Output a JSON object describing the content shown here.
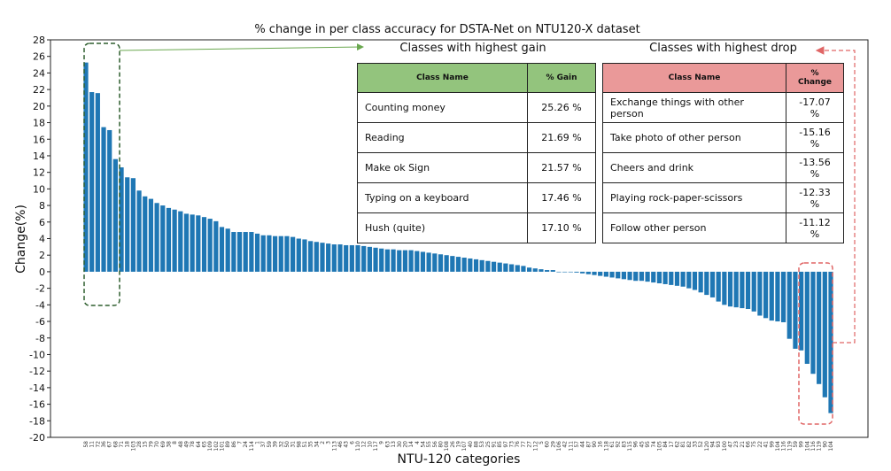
{
  "chart_data": {
    "type": "bar",
    "title": "% change in per class accuracy for DSTA-Net on NTU120-X dataset",
    "xlabel": "NTU-120 categories",
    "ylabel": "Change(%)",
    "ylim": [
      -20,
      28
    ],
    "yticks": [
      -20,
      -18,
      -16,
      -14,
      -12,
      -10,
      -8,
      -6,
      -4,
      -2,
      0,
      2,
      4,
      6,
      8,
      10,
      12,
      14,
      16,
      18,
      20,
      22,
      24,
      26,
      28
    ],
    "bar_color": "#1f77b4",
    "values": [
      25.26,
      21.69,
      21.57,
      17.46,
      17.1,
      13.6,
      12.6,
      11.4,
      11.3,
      9.8,
      9.1,
      8.8,
      8.3,
      8.0,
      7.7,
      7.5,
      7.3,
      7.0,
      6.9,
      6.8,
      6.6,
      6.4,
      6.1,
      5.4,
      5.2,
      4.8,
      4.8,
      4.8,
      4.8,
      4.6,
      4.4,
      4.4,
      4.3,
      4.3,
      4.3,
      4.2,
      4.0,
      3.9,
      3.7,
      3.6,
      3.5,
      3.4,
      3.3,
      3.3,
      3.2,
      3.2,
      3.2,
      3.1,
      3.0,
      2.9,
      2.8,
      2.7,
      2.7,
      2.6,
      2.6,
      2.6,
      2.5,
      2.4,
      2.3,
      2.2,
      2.1,
      2.0,
      1.9,
      1.8,
      1.7,
      1.6,
      1.5,
      1.4,
      1.3,
      1.2,
      1.1,
      1.0,
      0.9,
      0.8,
      0.7,
      0.5,
      0.4,
      0.3,
      0.2,
      0.2,
      0.0,
      0.0,
      0.0,
      -0.1,
      -0.2,
      -0.3,
      -0.4,
      -0.5,
      -0.6,
      -0.7,
      -0.8,
      -0.9,
      -1.0,
      -1.1,
      -1.1,
      -1.2,
      -1.3,
      -1.4,
      -1.5,
      -1.6,
      -1.7,
      -1.8,
      -2.0,
      -2.2,
      -2.5,
      -2.8,
      -3.1,
      -3.6,
      -4.0,
      -4.2,
      -4.3,
      -4.4,
      -4.5,
      -4.8,
      -5.3,
      -5.6,
      -5.9,
      -6.0,
      -6.1,
      -8.1,
      -9.3,
      -9.5,
      -11.12,
      -12.33,
      -13.56,
      -15.16,
      -17.07
    ],
    "categories": [
      "58",
      "11",
      "72",
      "36",
      "67",
      "68",
      "71",
      "18",
      "103",
      "28",
      "15",
      "79",
      "70",
      "69",
      "38",
      "8",
      "48",
      "49",
      "78",
      "64",
      "65",
      "109",
      "102",
      "101",
      "89",
      "86",
      "7",
      "24",
      "114",
      "1",
      "37",
      "59",
      "39",
      "32",
      "50",
      "31",
      "98",
      "51",
      "35",
      "34",
      "2",
      "3",
      "113",
      "46",
      "43",
      "6",
      "110",
      "12",
      "10",
      "117",
      "9",
      "63",
      "13",
      "30",
      "20",
      "14",
      "4",
      "54",
      "55",
      "56",
      "80",
      "108",
      "26",
      "19",
      "107",
      "40",
      "88",
      "53",
      "25",
      "91",
      "85",
      "97",
      "73",
      "76",
      "77",
      "27",
      "112",
      "5",
      "60",
      "29",
      "106",
      "42",
      "111",
      "57",
      "44",
      "87",
      "90",
      "16",
      "118",
      "61",
      "92",
      "83",
      "115",
      "96",
      "45",
      "95",
      "74",
      "105",
      "84",
      "17",
      "62",
      "81",
      "82",
      "33",
      "52",
      "120",
      "94",
      "93",
      "100",
      "47",
      "23",
      "21",
      "66",
      "75",
      "22",
      "41",
      "99",
      "104",
      "116",
      "119",
      "59",
      "99",
      "104",
      "116",
      "119",
      "90",
      "104"
    ]
  },
  "gain_table": {
    "title": "Classes with highest gain",
    "col_name": "Class Name",
    "col_value": "% Gain",
    "rows": [
      {
        "name": "Counting money",
        "value": "25.26 %"
      },
      {
        "name": "Reading",
        "value": "21.69 %"
      },
      {
        "name": "Make ok Sign",
        "value": "21.57 %"
      },
      {
        "name": "Typing on a keyboard",
        "value": "17.46 %"
      },
      {
        "name": "Hush (quite)",
        "value": "17.10 %"
      }
    ]
  },
  "drop_table": {
    "title": "Classes with highest drop",
    "col_name": "Class Name",
    "col_value": "% Change",
    "rows": [
      {
        "name": "Exchange things with other person",
        "value": "-17.07 %"
      },
      {
        "name": "Take photo of other person",
        "value": "-15.16 %"
      },
      {
        "name": "Cheers and drink",
        "value": "-13.56 %"
      },
      {
        "name": "Playing rock-paper-scissors",
        "value": "-12.33 %"
      },
      {
        "name": "Follow other person",
        "value": "-11.12 %"
      }
    ]
  },
  "colors": {
    "bar": "#1f77b4",
    "gain_box": "#2e5e2e",
    "gain_arrow": "#6aa84f",
    "drop_box": "#e06666",
    "gain_header": "#93c47d",
    "drop_header": "#ea9999"
  }
}
